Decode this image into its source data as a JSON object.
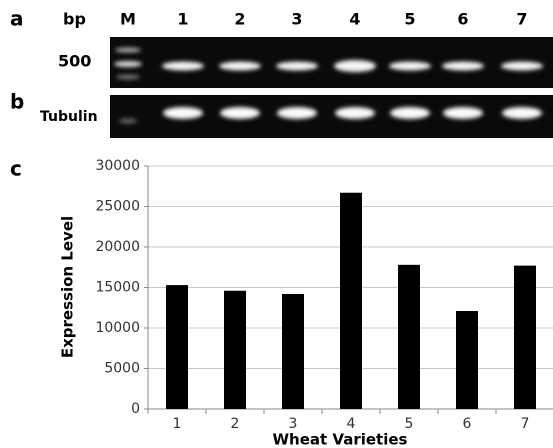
{
  "figure": {
    "panel_a": "a",
    "panel_b": "b",
    "panel_c": "c",
    "size_header": "bp",
    "lanes": [
      "M",
      "1",
      "2",
      "3",
      "4",
      "5",
      "6",
      "7"
    ],
    "size_label": "500",
    "control_label": "Tubulin"
  },
  "chart_data": {
    "type": "bar",
    "categories": [
      "1",
      "2",
      "3",
      "4",
      "5",
      "6",
      "7"
    ],
    "values": [
      15300,
      14600,
      14200,
      26700,
      17800,
      12100,
      17700
    ],
    "color": "#000000",
    "ylim": [
      0,
      30000
    ],
    "yticks": [
      0,
      5000,
      10000,
      15000,
      20000,
      25000,
      30000
    ],
    "grid": true,
    "y_label": "Expression Level",
    "x_label": "Wheat Varieties"
  }
}
